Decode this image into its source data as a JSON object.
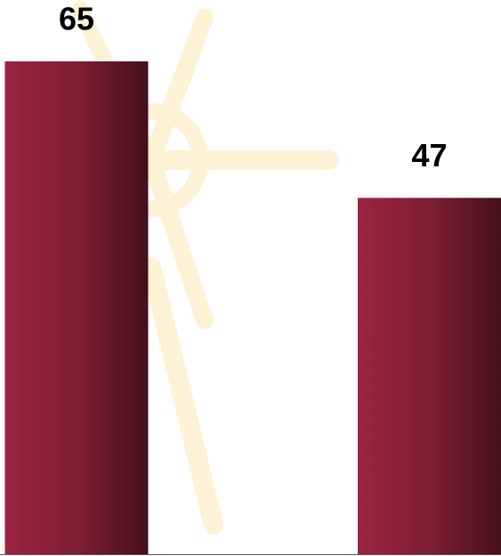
{
  "chart_data": {
    "type": "bar",
    "categories": [
      null,
      null
    ],
    "values": [
      65,
      47
    ],
    "color": "#9b2442"
  }
}
